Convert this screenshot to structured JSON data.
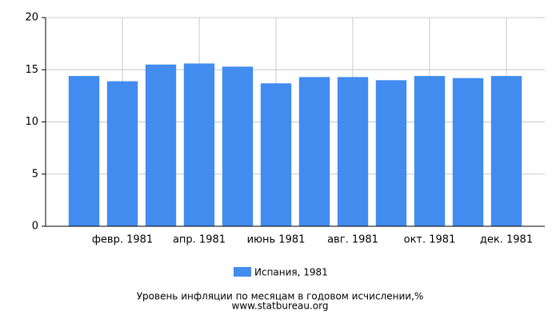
{
  "chart_data": {
    "type": "bar",
    "title": "Уровень инфляции по месяцам в годовом исчислении,%",
    "subtitle": "www.statbureau.org",
    "categories": [
      null,
      "февр. 1981",
      null,
      "апр. 1981",
      null,
      "июнь 1981",
      null,
      "авг. 1981",
      null,
      "окт. 1981",
      null,
      "дек. 1981"
    ],
    "series": [
      {
        "name": "Испания, 1981",
        "color": "#428bef",
        "values": [
          14.4,
          13.9,
          15.5,
          15.6,
          15.3,
          13.7,
          14.3,
          14.3,
          14.0,
          14.4,
          14.2,
          14.4
        ]
      }
    ],
    "ylim": [
      0,
      20
    ],
    "yticks": [
      0,
      5,
      10,
      15,
      20
    ],
    "grid": true
  }
}
